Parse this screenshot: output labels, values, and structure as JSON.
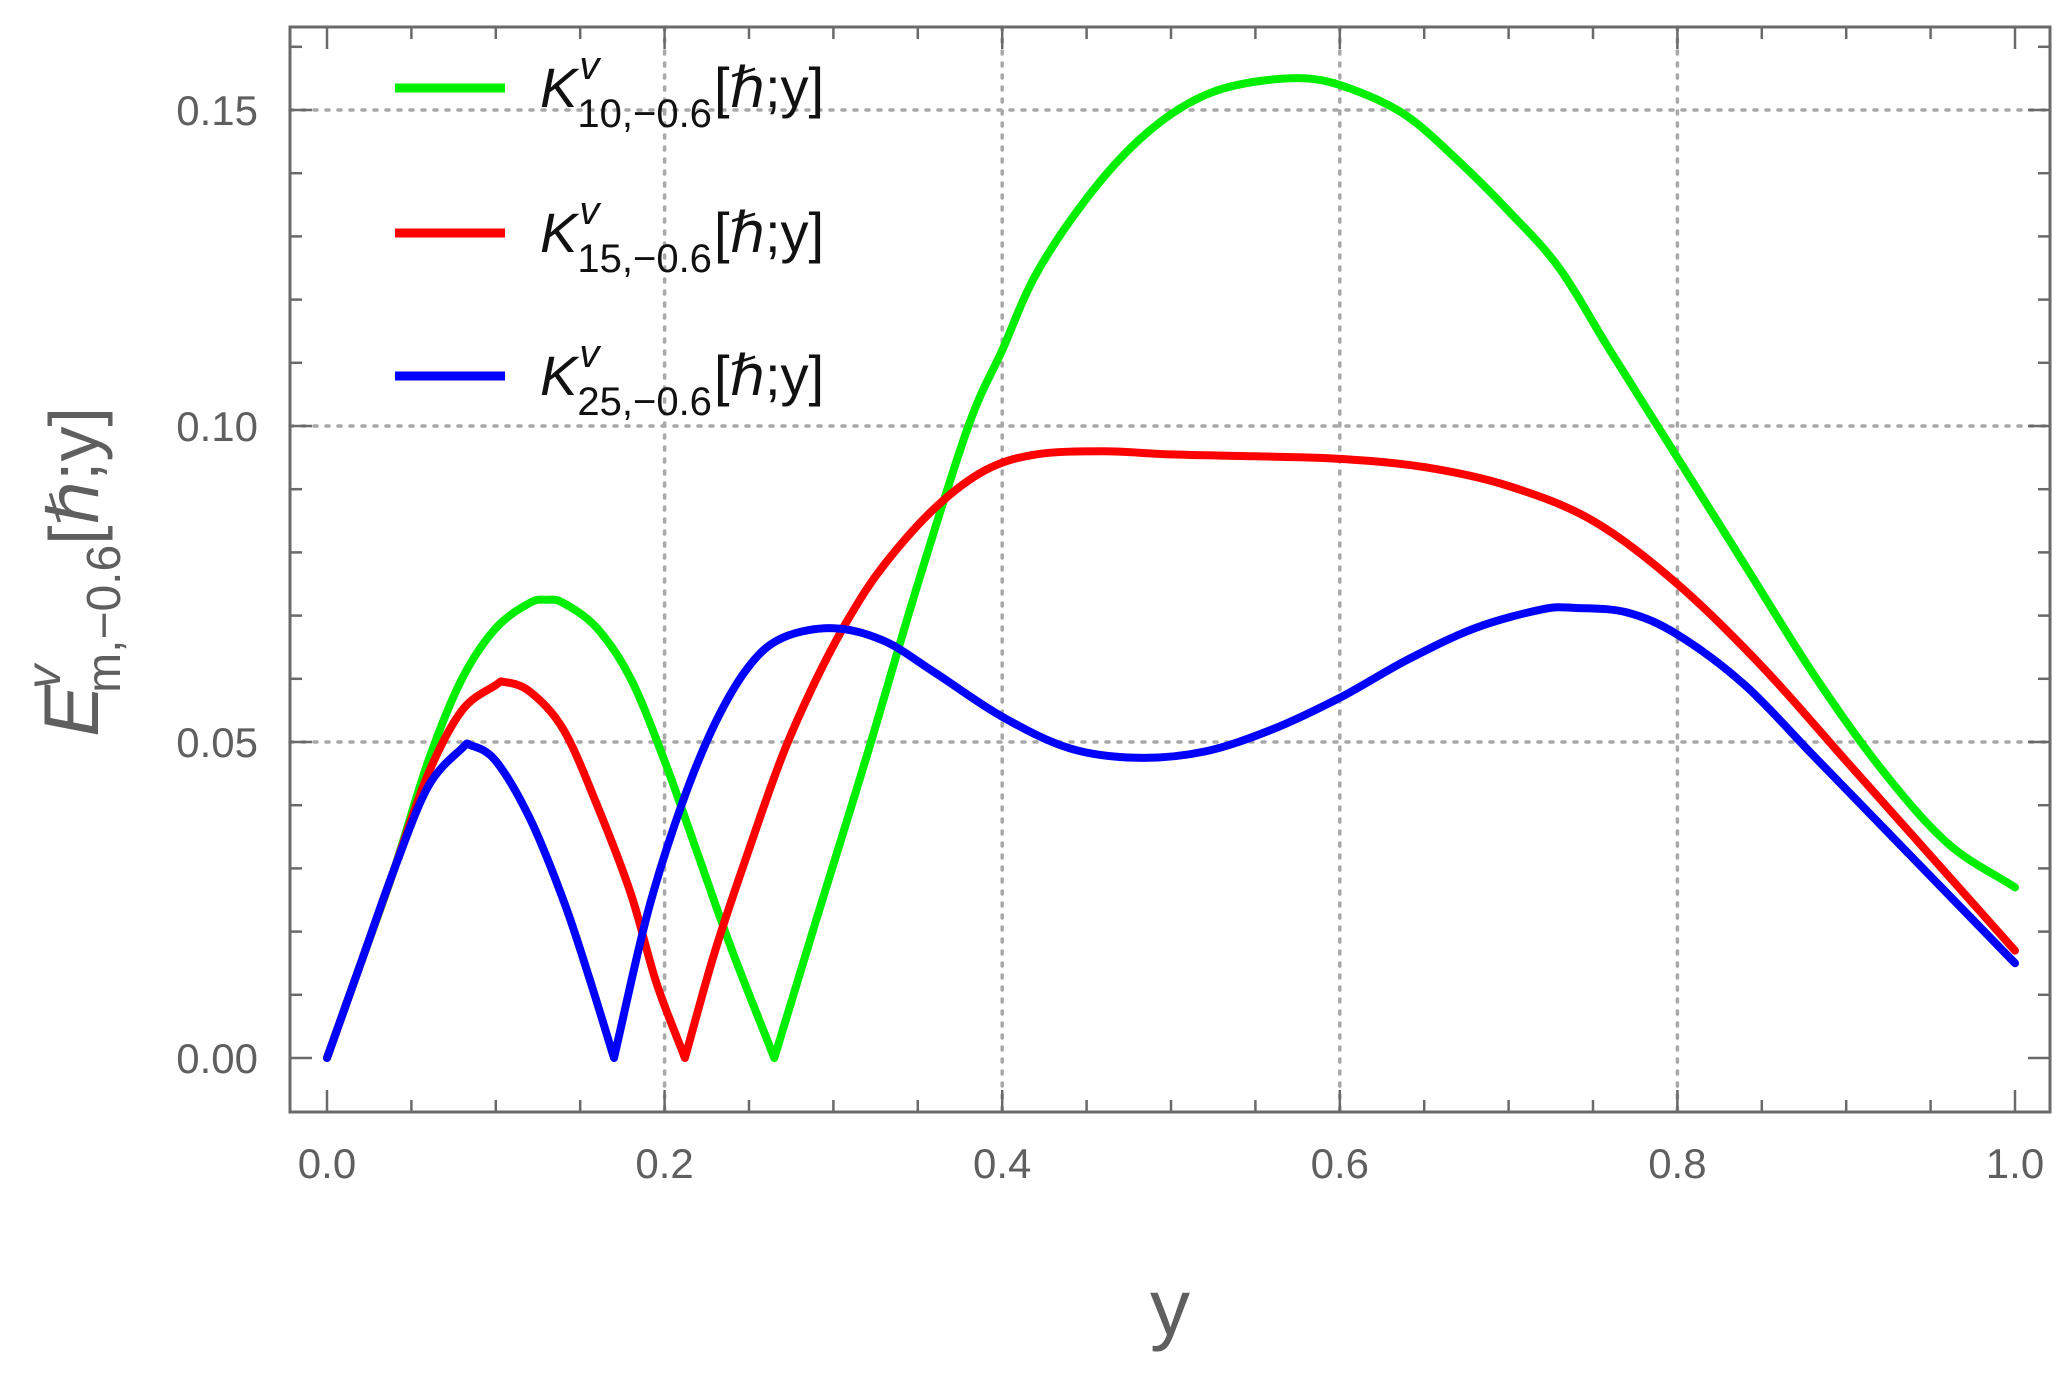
{
  "chart_data": {
    "type": "line",
    "title": "",
    "xlabel": "y",
    "ylabel": {
      "base": "E",
      "superscript": "v",
      "subscript": "m,−0.6",
      "args": "[ℏ;y]"
    },
    "xlim": [
      0.0,
      1.0
    ],
    "ylim": [
      -0.008,
      0.162
    ],
    "x_ticks": [
      0.0,
      0.2,
      0.4,
      0.6,
      0.8,
      1.0
    ],
    "x_tick_labels": [
      "0.0",
      "0.2",
      "0.4",
      "0.6",
      "0.8",
      "1.0"
    ],
    "y_ticks": [
      0.0,
      0.05,
      0.1,
      0.15
    ],
    "y_tick_labels": [
      "0.00",
      "0.05",
      "0.10",
      "0.15"
    ],
    "grid": true,
    "grid_style": "dotted",
    "legend_position": "top-left",
    "series": [
      {
        "name": "K^v_{10,−0.6}[ℏ;y]",
        "legend": {
          "base": "K",
          "superscript": "v",
          "subscript": "10,−0.6",
          "args": "[ℏ;y]"
        },
        "color": "#00ee00",
        "points": [
          [
            0.0,
            0.0
          ],
          [
            0.02,
            0.015
          ],
          [
            0.04,
            0.03
          ],
          [
            0.06,
            0.047
          ],
          [
            0.08,
            0.06
          ],
          [
            0.1,
            0.068
          ],
          [
            0.12,
            0.072
          ],
          [
            0.13,
            0.0725
          ],
          [
            0.14,
            0.072
          ],
          [
            0.16,
            0.068
          ],
          [
            0.18,
            0.06
          ],
          [
            0.2,
            0.047
          ],
          [
            0.22,
            0.032
          ],
          [
            0.24,
            0.017
          ],
          [
            0.265,
            0.0
          ],
          [
            0.29,
            0.022
          ],
          [
            0.32,
            0.048
          ],
          [
            0.35,
            0.075
          ],
          [
            0.38,
            0.1
          ],
          [
            0.4,
            0.112
          ],
          [
            0.42,
            0.124
          ],
          [
            0.45,
            0.136
          ],
          [
            0.48,
            0.145
          ],
          [
            0.51,
            0.151
          ],
          [
            0.54,
            0.154
          ],
          [
            0.58,
            0.155
          ],
          [
            0.61,
            0.153
          ],
          [
            0.64,
            0.149
          ],
          [
            0.67,
            0.142
          ],
          [
            0.7,
            0.134
          ],
          [
            0.73,
            0.125
          ],
          [
            0.76,
            0.112
          ],
          [
            0.8,
            0.095
          ],
          [
            0.84,
            0.078
          ],
          [
            0.88,
            0.061
          ],
          [
            0.92,
            0.046
          ],
          [
            0.96,
            0.034
          ],
          [
            1.0,
            0.027
          ]
        ]
      },
      {
        "name": "K^v_{15,−0.6}[ℏ;y]",
        "legend": {
          "base": "K",
          "superscript": "v",
          "subscript": "15,−0.6",
          "args": "[ℏ;y]"
        },
        "color": "#ff0000",
        "points": [
          [
            0.0,
            0.0
          ],
          [
            0.02,
            0.015
          ],
          [
            0.04,
            0.03
          ],
          [
            0.06,
            0.045
          ],
          [
            0.08,
            0.055
          ],
          [
            0.1,
            0.059
          ],
          [
            0.105,
            0.0595
          ],
          [
            0.12,
            0.058
          ],
          [
            0.14,
            0.052
          ],
          [
            0.16,
            0.04
          ],
          [
            0.18,
            0.026
          ],
          [
            0.195,
            0.012
          ],
          [
            0.212,
            0.0
          ],
          [
            0.23,
            0.017
          ],
          [
            0.25,
            0.033
          ],
          [
            0.27,
            0.048
          ],
          [
            0.29,
            0.06
          ],
          [
            0.31,
            0.07
          ],
          [
            0.33,
            0.078
          ],
          [
            0.36,
            0.087
          ],
          [
            0.39,
            0.093
          ],
          [
            0.42,
            0.0955
          ],
          [
            0.46,
            0.096
          ],
          [
            0.5,
            0.0955
          ],
          [
            0.55,
            0.0952
          ],
          [
            0.6,
            0.0948
          ],
          [
            0.65,
            0.0935
          ],
          [
            0.7,
            0.0905
          ],
          [
            0.75,
            0.085
          ],
          [
            0.8,
            0.075
          ],
          [
            0.85,
            0.062
          ],
          [
            0.9,
            0.047
          ],
          [
            0.95,
            0.032
          ],
          [
            1.0,
            0.017
          ]
        ]
      },
      {
        "name": "K^v_{25,−0.6}[ℏ;y]",
        "legend": {
          "base": "K",
          "superscript": "v",
          "subscript": "25,−0.6",
          "args": "[ℏ;y]"
        },
        "color": "#0000ff",
        "points": [
          [
            0.0,
            0.0
          ],
          [
            0.02,
            0.015
          ],
          [
            0.04,
            0.03
          ],
          [
            0.06,
            0.043
          ],
          [
            0.08,
            0.049
          ],
          [
            0.085,
            0.0495
          ],
          [
            0.1,
            0.047
          ],
          [
            0.12,
            0.038
          ],
          [
            0.14,
            0.025
          ],
          [
            0.155,
            0.013
          ],
          [
            0.17,
            0.0
          ],
          [
            0.19,
            0.023
          ],
          [
            0.21,
            0.04
          ],
          [
            0.23,
            0.053
          ],
          [
            0.25,
            0.062
          ],
          [
            0.27,
            0.0665
          ],
          [
            0.3,
            0.068
          ],
          [
            0.33,
            0.066
          ],
          [
            0.36,
            0.061
          ],
          [
            0.4,
            0.054
          ],
          [
            0.44,
            0.049
          ],
          [
            0.48,
            0.0475
          ],
          [
            0.52,
            0.0485
          ],
          [
            0.56,
            0.052
          ],
          [
            0.6,
            0.057
          ],
          [
            0.64,
            0.063
          ],
          [
            0.68,
            0.068
          ],
          [
            0.72,
            0.071
          ],
          [
            0.74,
            0.0712
          ],
          [
            0.77,
            0.0705
          ],
          [
            0.8,
            0.067
          ],
          [
            0.84,
            0.059
          ],
          [
            0.88,
            0.048
          ],
          [
            0.92,
            0.037
          ],
          [
            0.96,
            0.026
          ],
          [
            1.0,
            0.015
          ]
        ]
      }
    ]
  }
}
